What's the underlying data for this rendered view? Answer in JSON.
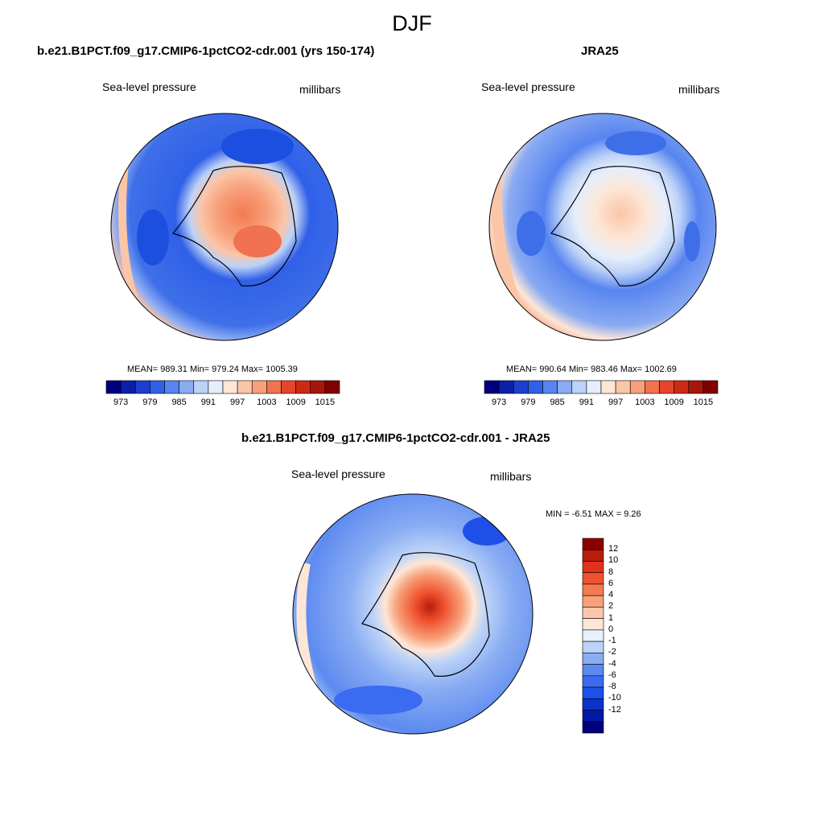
{
  "figure": {
    "season": "DJF",
    "panels": [
      {
        "title": "b.e21.B1PCT.f09_g17.CMIP6-1pctCO2-cdr.001 (yrs 150-174)",
        "variable": "Sea-level pressure",
        "units": "millibars",
        "stats": "MEAN= 989.31  Min= 979.24  Max= 1005.39",
        "mean": 989.31,
        "min": 979.24,
        "max": 1005.39
      },
      {
        "title": "JRA25",
        "variable": "Sea-level pressure",
        "units": "millibars",
        "stats": "MEAN= 990.64  Min= 983.46  Max= 1002.69",
        "mean": 990.64,
        "min": 983.46,
        "max": 1002.69
      },
      {
        "title": "b.e21.B1PCT.f09_g17.CMIP6-1pctCO2-cdr.001 - JRA25",
        "variable": "Sea-level pressure",
        "units": "millibars",
        "stats": "MIN =  -6.51 MAX =   9.26",
        "min": -6.51,
        "max": 9.26
      }
    ],
    "abs_colorbar": {
      "colors": [
        "#00007f",
        "#0c1fa8",
        "#1c3fcf",
        "#3060e8",
        "#5784f0",
        "#8aabf2",
        "#bcd2f7",
        "#e6eefb",
        "#fde6d6",
        "#fbc5a7",
        "#f7a07a",
        "#f17250",
        "#e6452b",
        "#cc2a14",
        "#a8150a",
        "#7f0000"
      ],
      "tick_labels": [
        "973",
        "979",
        "985",
        "991",
        "997",
        "1003",
        "1009",
        "1015"
      ]
    },
    "diff_colorbar": {
      "colors": [
        "#00007f",
        "#0019a8",
        "#0a33cc",
        "#1e4fe8",
        "#3a6bf0",
        "#5c8af0",
        "#8aadf3",
        "#bcd3f8",
        "#e7f0fc",
        "#fde6d6",
        "#fbc7aa",
        "#f7a07a",
        "#f47a52",
        "#f0522f",
        "#e0321a",
        "#b81c0a",
        "#8a0000"
      ],
      "tick_labels": [
        "12",
        "10",
        "8",
        "6",
        "4",
        "2",
        "1",
        "0",
        "-1",
        "-2",
        "-4",
        "-6",
        "-8",
        "-10",
        "-12"
      ]
    }
  }
}
